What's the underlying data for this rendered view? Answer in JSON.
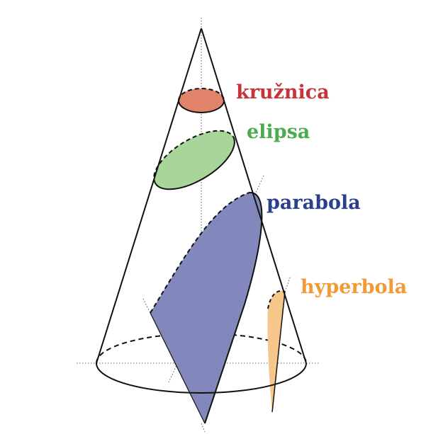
{
  "labels": {
    "circle": "kružnica",
    "ellipse": "elipsa",
    "parabola": "parabola",
    "hyperbola": "hyperbola"
  },
  "colors": {
    "circle": "#e0836a",
    "circle_text": "#c8323a",
    "ellipse": "#a8d69a",
    "ellipse_text": "#4cab4c",
    "parabola": "#8288bb",
    "parabola_text": "#2b3f8f",
    "hyperbola": "#f7c68b",
    "hyperbola_text": "#f29a35"
  }
}
